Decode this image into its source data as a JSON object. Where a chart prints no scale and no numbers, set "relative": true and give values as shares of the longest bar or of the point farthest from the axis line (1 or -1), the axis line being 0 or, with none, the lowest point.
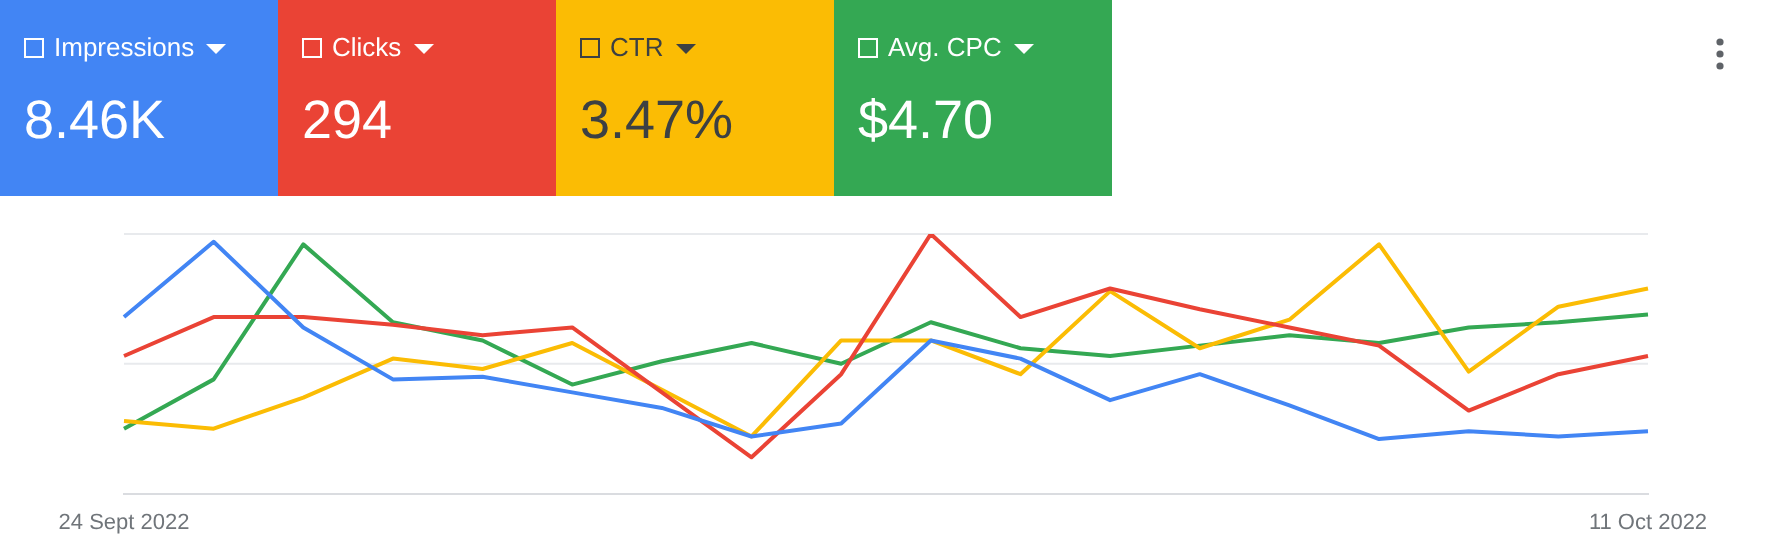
{
  "chart_data": {
    "type": "line",
    "relative": true,
    "legend": "top left",
    "marker": "none",
    "ref_lines": [
      {
        "axis": "y",
        "value": 1,
        "color": "#e8eaed"
      },
      {
        "axis": "y",
        "value": 0.5,
        "color": "#e8eaed"
      }
    ],
    "categories": [
      "24 Sept 2022",
      null,
      null,
      null,
      null,
      null,
      null,
      null,
      null,
      null,
      null,
      null,
      null,
      null,
      null,
      null,
      null,
      "11 Oct 2022"
    ],
    "series": [
      {
        "name": "Impressions",
        "color": "#4285f4",
        "values": [
          0.68,
          0.97,
          0.64,
          0.44,
          0.45,
          0.39,
          0.33,
          0.22,
          0.27,
          0.59,
          0.52,
          0.36,
          0.46,
          0.34,
          0.21,
          0.24,
          0.22,
          0.24
        ]
      },
      {
        "name": "Clicks",
        "color": "#ea4335",
        "values": [
          0.53,
          0.68,
          0.68,
          0.65,
          0.61,
          0.64,
          0.39,
          0.14,
          0.46,
          1.0,
          0.68,
          0.79,
          0.71,
          0.64,
          0.57,
          0.32,
          0.46,
          0.53
        ]
      },
      {
        "name": "CTR",
        "color": "#fbbc04",
        "values": [
          0.28,
          0.25,
          0.37,
          0.52,
          0.48,
          0.58,
          0.4,
          0.22,
          0.59,
          0.59,
          0.46,
          0.78,
          0.56,
          0.67,
          0.96,
          0.47,
          0.72,
          0.79
        ]
      },
      {
        "name": "Avg. CPC",
        "color": "#34a853",
        "values": [
          0.25,
          0.44,
          0.96,
          0.66,
          0.59,
          0.42,
          0.51,
          0.58,
          0.5,
          0.66,
          0.56,
          0.53,
          0.57,
          0.61,
          0.58,
          0.64,
          0.66,
          0.69
        ]
      }
    ],
    "annotations": [
      "8.46K",
      "294",
      "3.47%",
      "$4.70"
    ]
  }
}
